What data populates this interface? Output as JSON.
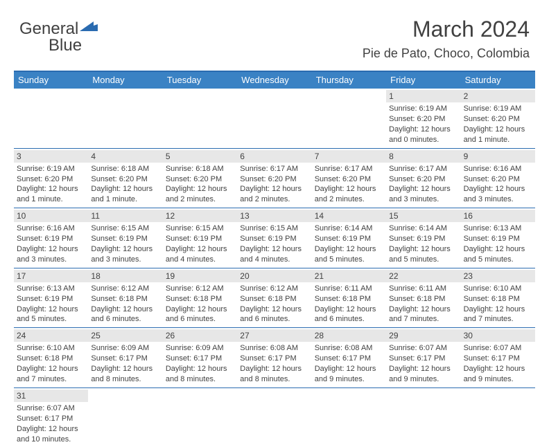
{
  "logo": {
    "textA": "General",
    "textB": "Blue"
  },
  "title": "March 2024",
  "location": "Pie de Pato, Choco, Colombia",
  "colors": {
    "headerBg": "#3a82c4",
    "borderBlue": "#2a6bb0",
    "dayNumBg": "#e7e7e7",
    "text": "#414141",
    "white": "#ffffff"
  },
  "dayNames": [
    "Sunday",
    "Monday",
    "Tuesday",
    "Wednesday",
    "Thursday",
    "Friday",
    "Saturday"
  ],
  "weeks": [
    [
      null,
      null,
      null,
      null,
      null,
      {
        "n": "1",
        "sr": "Sunrise: 6:19 AM",
        "ss": "Sunset: 6:20 PM",
        "d1": "Daylight: 12 hours",
        "d2": "and 0 minutes."
      },
      {
        "n": "2",
        "sr": "Sunrise: 6:19 AM",
        "ss": "Sunset: 6:20 PM",
        "d1": "Daylight: 12 hours",
        "d2": "and 1 minute."
      }
    ],
    [
      {
        "n": "3",
        "sr": "Sunrise: 6:19 AM",
        "ss": "Sunset: 6:20 PM",
        "d1": "Daylight: 12 hours",
        "d2": "and 1 minute."
      },
      {
        "n": "4",
        "sr": "Sunrise: 6:18 AM",
        "ss": "Sunset: 6:20 PM",
        "d1": "Daylight: 12 hours",
        "d2": "and 1 minute."
      },
      {
        "n": "5",
        "sr": "Sunrise: 6:18 AM",
        "ss": "Sunset: 6:20 PM",
        "d1": "Daylight: 12 hours",
        "d2": "and 2 minutes."
      },
      {
        "n": "6",
        "sr": "Sunrise: 6:17 AM",
        "ss": "Sunset: 6:20 PM",
        "d1": "Daylight: 12 hours",
        "d2": "and 2 minutes."
      },
      {
        "n": "7",
        "sr": "Sunrise: 6:17 AM",
        "ss": "Sunset: 6:20 PM",
        "d1": "Daylight: 12 hours",
        "d2": "and 2 minutes."
      },
      {
        "n": "8",
        "sr": "Sunrise: 6:17 AM",
        "ss": "Sunset: 6:20 PM",
        "d1": "Daylight: 12 hours",
        "d2": "and 3 minutes."
      },
      {
        "n": "9",
        "sr": "Sunrise: 6:16 AM",
        "ss": "Sunset: 6:20 PM",
        "d1": "Daylight: 12 hours",
        "d2": "and 3 minutes."
      }
    ],
    [
      {
        "n": "10",
        "sr": "Sunrise: 6:16 AM",
        "ss": "Sunset: 6:19 PM",
        "d1": "Daylight: 12 hours",
        "d2": "and 3 minutes."
      },
      {
        "n": "11",
        "sr": "Sunrise: 6:15 AM",
        "ss": "Sunset: 6:19 PM",
        "d1": "Daylight: 12 hours",
        "d2": "and 3 minutes."
      },
      {
        "n": "12",
        "sr": "Sunrise: 6:15 AM",
        "ss": "Sunset: 6:19 PM",
        "d1": "Daylight: 12 hours",
        "d2": "and 4 minutes."
      },
      {
        "n": "13",
        "sr": "Sunrise: 6:15 AM",
        "ss": "Sunset: 6:19 PM",
        "d1": "Daylight: 12 hours",
        "d2": "and 4 minutes."
      },
      {
        "n": "14",
        "sr": "Sunrise: 6:14 AM",
        "ss": "Sunset: 6:19 PM",
        "d1": "Daylight: 12 hours",
        "d2": "and 5 minutes."
      },
      {
        "n": "15",
        "sr": "Sunrise: 6:14 AM",
        "ss": "Sunset: 6:19 PM",
        "d1": "Daylight: 12 hours",
        "d2": "and 5 minutes."
      },
      {
        "n": "16",
        "sr": "Sunrise: 6:13 AM",
        "ss": "Sunset: 6:19 PM",
        "d1": "Daylight: 12 hours",
        "d2": "and 5 minutes."
      }
    ],
    [
      {
        "n": "17",
        "sr": "Sunrise: 6:13 AM",
        "ss": "Sunset: 6:19 PM",
        "d1": "Daylight: 12 hours",
        "d2": "and 5 minutes."
      },
      {
        "n": "18",
        "sr": "Sunrise: 6:12 AM",
        "ss": "Sunset: 6:18 PM",
        "d1": "Daylight: 12 hours",
        "d2": "and 6 minutes."
      },
      {
        "n": "19",
        "sr": "Sunrise: 6:12 AM",
        "ss": "Sunset: 6:18 PM",
        "d1": "Daylight: 12 hours",
        "d2": "and 6 minutes."
      },
      {
        "n": "20",
        "sr": "Sunrise: 6:12 AM",
        "ss": "Sunset: 6:18 PM",
        "d1": "Daylight: 12 hours",
        "d2": "and 6 minutes."
      },
      {
        "n": "21",
        "sr": "Sunrise: 6:11 AM",
        "ss": "Sunset: 6:18 PM",
        "d1": "Daylight: 12 hours",
        "d2": "and 6 minutes."
      },
      {
        "n": "22",
        "sr": "Sunrise: 6:11 AM",
        "ss": "Sunset: 6:18 PM",
        "d1": "Daylight: 12 hours",
        "d2": "and 7 minutes."
      },
      {
        "n": "23",
        "sr": "Sunrise: 6:10 AM",
        "ss": "Sunset: 6:18 PM",
        "d1": "Daylight: 12 hours",
        "d2": "and 7 minutes."
      }
    ],
    [
      {
        "n": "24",
        "sr": "Sunrise: 6:10 AM",
        "ss": "Sunset: 6:18 PM",
        "d1": "Daylight: 12 hours",
        "d2": "and 7 minutes."
      },
      {
        "n": "25",
        "sr": "Sunrise: 6:09 AM",
        "ss": "Sunset: 6:17 PM",
        "d1": "Daylight: 12 hours",
        "d2": "and 8 minutes."
      },
      {
        "n": "26",
        "sr": "Sunrise: 6:09 AM",
        "ss": "Sunset: 6:17 PM",
        "d1": "Daylight: 12 hours",
        "d2": "and 8 minutes."
      },
      {
        "n": "27",
        "sr": "Sunrise: 6:08 AM",
        "ss": "Sunset: 6:17 PM",
        "d1": "Daylight: 12 hours",
        "d2": "and 8 minutes."
      },
      {
        "n": "28",
        "sr": "Sunrise: 6:08 AM",
        "ss": "Sunset: 6:17 PM",
        "d1": "Daylight: 12 hours",
        "d2": "and 9 minutes."
      },
      {
        "n": "29",
        "sr": "Sunrise: 6:07 AM",
        "ss": "Sunset: 6:17 PM",
        "d1": "Daylight: 12 hours",
        "d2": "and 9 minutes."
      },
      {
        "n": "30",
        "sr": "Sunrise: 6:07 AM",
        "ss": "Sunset: 6:17 PM",
        "d1": "Daylight: 12 hours",
        "d2": "and 9 minutes."
      }
    ],
    [
      {
        "n": "31",
        "sr": "Sunrise: 6:07 AM",
        "ss": "Sunset: 6:17 PM",
        "d1": "Daylight: 12 hours",
        "d2": "and 10 minutes."
      },
      null,
      null,
      null,
      null,
      null,
      null
    ]
  ]
}
